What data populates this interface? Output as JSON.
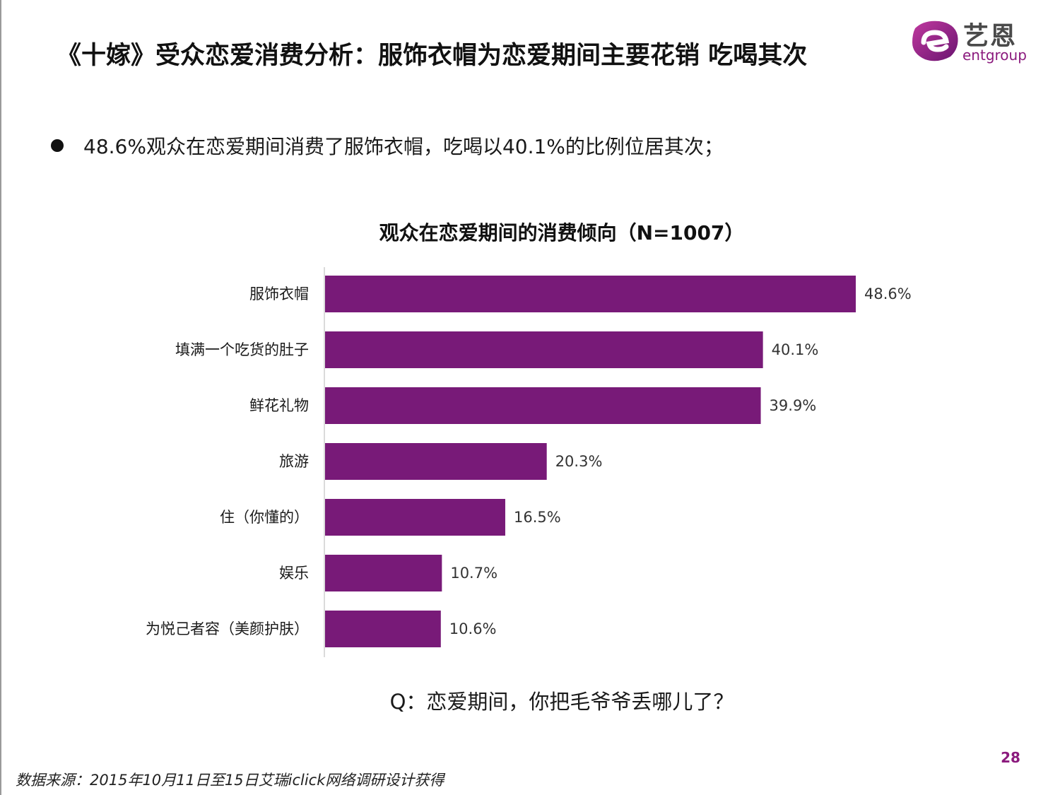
{
  "header": {
    "title": "《十嫁》受众恋爱消费分析：服饰衣帽为恋爱期间主要花销  吃喝其次",
    "logo": {
      "cn": "艺恩",
      "en": "entgroup",
      "brand_color": "#8b1a7d"
    }
  },
  "bullet": "48.6%观众在恋爱期间消费了服饰衣帽，吃喝以40.1%的比例位居其次；",
  "chart_data": {
    "type": "bar",
    "orientation": "horizontal",
    "title": "观众在恋爱期间的消费倾向（N=1007）",
    "categories": [
      "服饰衣帽",
      "填满一个吃货的肚子",
      "鲜花礼物",
      "旅游",
      "住（你懂的）",
      "娱乐",
      "为悦己者容（美颜护肤）"
    ],
    "values": [
      48.6,
      40.1,
      39.9,
      20.3,
      16.5,
      10.7,
      10.6
    ],
    "value_labels": [
      "48.6%",
      "40.1%",
      "39.9%",
      "20.3%",
      "16.5%",
      "10.7%",
      "10.6%"
    ],
    "unit": "%",
    "xlim": [
      0,
      50
    ],
    "grid": false,
    "bar_color": "#781a78"
  },
  "question": "Q：恋爱期间，你把毛爷爷丢哪儿了？",
  "footer": {
    "page_number": "28",
    "source": "数据来源：2015年10月11日至15日艾瑞iclick网络调研设计获得"
  }
}
